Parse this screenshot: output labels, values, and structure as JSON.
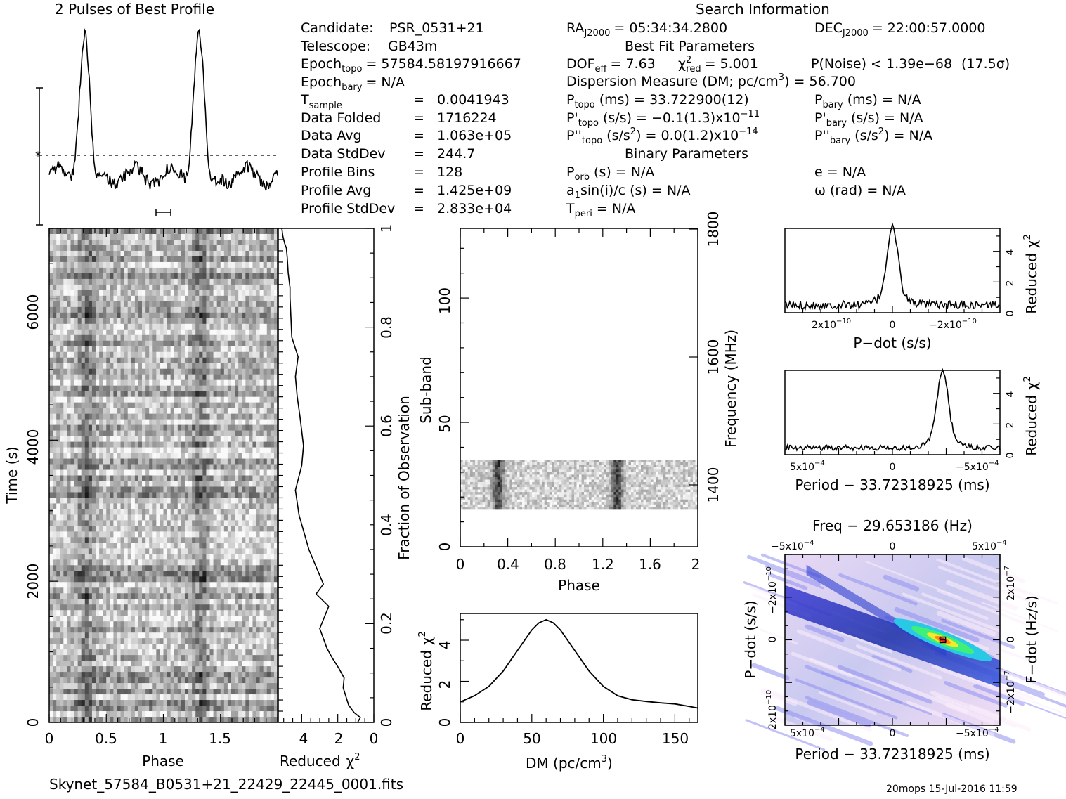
{
  "title_profile": "2 Pulses of Best Profile",
  "title_search": "Search Information",
  "title_best_fit": "Best Fit Parameters",
  "title_binary": "Binary Parameters",
  "filename": "Skynet_57584_B0531+21_22429_22445_0001.fits",
  "footer_stamp": "20mops 15-Jul-2016 11:59",
  "info": {
    "candidate_label": "Candidate:",
    "candidate_value": "PSR_0531+21",
    "telescope_label": "Telescope:",
    "telescope_value": "GB43m",
    "epoch_topo_label": "Epoch",
    "epoch_topo_sub": "topo",
    "epoch_topo_value": "= 57584.58197916667",
    "epoch_bary_label": "Epoch",
    "epoch_bary_sub": "bary",
    "epoch_bary_value": "= N/A",
    "tsample_label": "T",
    "tsample_sub": "sample",
    "tsample_eq": "=",
    "tsample_value": "0.0041943",
    "folded_label": "Data Folded",
    "folded_eq": "=",
    "folded_value": "1716224",
    "avg_label": "Data Avg",
    "avg_eq": "=",
    "avg_value": "1.063e+05",
    "std_label": "Data StdDev",
    "std_eq": "=",
    "std_value": "244.7",
    "bins_label": "Profile Bins",
    "bins_eq": "=",
    "bins_value": "128",
    "pavg_label": "Profile Avg",
    "pavg_eq": "=",
    "pavg_value": "1.425e+09",
    "pstd_label": "Profile StdDev",
    "pstd_eq": "=",
    "pstd_value": "2.833e+04"
  },
  "search": {
    "ra_label": "RA",
    "ra_sub": "J2000",
    "ra_value": "= 05:34:34.2800",
    "dec_label": "DEC",
    "dec_sub": "J2000",
    "dec_value": "= 22:00:57.0000",
    "dof_label": "DOF",
    "dof_sub": "eff",
    "dof_value": "= 7.63",
    "chi_label": "χ",
    "chi_sup": "2",
    "chi_sub": "red",
    "chi_value": "= 5.001",
    "pnoise": "P(Noise) < 1.39e−68",
    "sigma": "(17.5σ)",
    "dm_label": "Dispersion Measure (DM; pc/cm",
    "dm_sup": "3",
    "dm_value": ") = 56.700",
    "ptopo_label": "P",
    "ptopo_sub": "topo",
    "ptopo_value": "(ms) =  33.722900(12)",
    "pbary_label": "P",
    "pbary_sub": "bary",
    "pbary_value": "(ms) = N/A",
    "pdtopo_label": "P'",
    "pdtopo_sub": "topo",
    "pdtopo_value": "(s/s) = −0.1(1.3)x10",
    "pdtopo_exp": "−11",
    "pdbary_label": "P'",
    "pdbary_sub": "bary",
    "pdbary_value": "(s/s) = N/A",
    "pddtopo_label": "P''",
    "pddtopo_sub": "topo",
    "pddtopo_value": "(s/s",
    "pddtopo_sup": "2",
    "pddtopo_value2": ") = 0.0(1.2)x10",
    "pddtopo_exp": "−14",
    "pddbary_label": "P''",
    "pddbary_sub": "bary",
    "pddbary_value": "(s/s",
    "pddbary_sup": "2",
    "pddbary_value2": ") = N/A",
    "porb_label": "P",
    "porb_sub": "orb",
    "porb_value": "(s) = N/A",
    "e_value": "e = N/A",
    "a1_label": "a",
    "a1_sub": "1",
    "a1_value": "sin(i)/c (s) = N/A",
    "omega_value": "ω (rad) = N/A",
    "tperi_label": "T",
    "tperi_sub": "peri",
    "tperi_value": "= N/A"
  },
  "chart_data": [
    {
      "id": "profile",
      "type": "line",
      "title": "2 Pulses of Best Profile",
      "x_range": [
        0,
        2
      ],
      "peaks": [
        0.31,
        1.31
      ],
      "notes": "two sharp pulses at phase ~0.31 and ~1.31, noisy baseline between"
    },
    {
      "id": "time-phase",
      "type": "heatmap",
      "xlabel": "Phase",
      "ylabel": "Time (s)",
      "xticks": [
        "0",
        "0.5",
        "1",
        "1.5"
      ],
      "yticks": [
        "0",
        "2000",
        "4000",
        "6000"
      ],
      "x_range": [
        0,
        2
      ],
      "y_range": [
        0,
        7000
      ],
      "colormap": "grayscale"
    },
    {
      "id": "chi-vs-time",
      "type": "line",
      "xlabel": "Reduced",
      "xlabel_chi": "χ",
      "xlabel_sup": "2",
      "ylabel": "Fraction of Observation",
      "xticks": [
        "4",
        "2",
        "0"
      ],
      "yticks": [
        "0",
        "0.2",
        "0.4",
        "0.6",
        "0.8",
        "1"
      ],
      "x_range": [
        5.3,
        0
      ],
      "y_range": [
        0,
        1
      ],
      "x": [
        0.9,
        0.75,
        1.1,
        1.4,
        1.7,
        1.65,
        1.95,
        2.3,
        2.6,
        3.0,
        2.5,
        3.2,
        2.8,
        3.6,
        4.15,
        4.35,
        4.0,
        3.9,
        4.1,
        4.25,
        4.35,
        4.2,
        4.55,
        4.6,
        4.65,
        4.65,
        4.75,
        4.8,
        4.85,
        4.95,
        5.05,
        5.1
      ],
      "y": [
        0.0,
        0.01,
        0.02,
        0.035,
        0.07,
        0.09,
        0.11,
        0.13,
        0.15,
        0.19,
        0.235,
        0.26,
        0.28,
        0.35,
        0.42,
        0.47,
        0.52,
        0.56,
        0.62,
        0.66,
        0.7,
        0.74,
        0.78,
        0.82,
        0.86,
        0.88,
        0.91,
        0.94,
        0.96,
        0.97,
        0.985,
        1.0
      ]
    },
    {
      "id": "subband-phase",
      "type": "heatmap",
      "xlabel": "Phase",
      "ylabel": "Sub-band",
      "ylabel_right": "Frequency (MHz)",
      "xticks": [
        "0",
        "0.4",
        "0.8",
        "1.2",
        "1.6",
        "2"
      ],
      "yticks": [
        "0",
        "50",
        "100"
      ],
      "yticks_right": [
        "1400",
        "1600",
        "1800"
      ],
      "x_range": [
        0,
        2
      ],
      "y_range": [
        0,
        128
      ],
      "data_band": [
        15,
        35
      ],
      "colormap": "grayscale"
    },
    {
      "id": "dm-curve",
      "type": "line",
      "xlabel": "DM (pc/cm",
      "xlabel_sup": "3",
      "xlabel_end": ")",
      "ylabel": "Reduced",
      "ylabel_chi": "χ",
      "ylabel_sup": "2",
      "xticks": [
        "0",
        "50",
        "100",
        "150"
      ],
      "yticks": [
        "0",
        "2",
        "4"
      ],
      "x_range": [
        0,
        166
      ],
      "y_range": [
        0,
        5.3
      ],
      "x": [
        0,
        10,
        20,
        30,
        40,
        50,
        55,
        60,
        65,
        70,
        80,
        90,
        100,
        110,
        120,
        130,
        140,
        150,
        160,
        166
      ],
      "y": [
        1.0,
        1.3,
        1.75,
        2.5,
        3.5,
        4.5,
        4.85,
        5.0,
        4.85,
        4.5,
        3.5,
        2.5,
        1.75,
        1.3,
        1.1,
        1.02,
        0.95,
        0.9,
        0.78,
        0.7
      ]
    },
    {
      "id": "pdot-curve",
      "type": "line",
      "xlabel": "P−dot (s/s)",
      "ylabel": "Reduced",
      "ylabel_chi": "χ",
      "ylabel_sup": "2",
      "xticks": [
        "2x10",
        "0",
        "−2x10"
      ],
      "xticks_exp": "−10",
      "yticks": [
        "0",
        "2",
        "4"
      ],
      "x_range": [
        3.8e-10,
        -3.8e-10
      ],
      "y_range": [
        0,
        5.5
      ],
      "peak_x": 0,
      "peak_y": 5.0
    },
    {
      "id": "period-curve",
      "type": "line",
      "xlabel": "Period − 33.72318925 (ms)",
      "ylabel": "Reduced",
      "ylabel_chi": "χ",
      "ylabel_sup": "2",
      "xticks": [
        "5x10",
        "0",
        "−5x10"
      ],
      "xticks_exp": "−4",
      "yticks": [
        "0",
        "2",
        "4"
      ],
      "x_range": [
        0.00062,
        -0.00062
      ],
      "y_range": [
        0,
        5.5
      ],
      "peak_x": -0.00029,
      "peak_y": 4.95
    },
    {
      "id": "ppdot-plane",
      "type": "heatmap",
      "title": "Freq − 29.653186 (Hz)",
      "xlabel": "Period − 33.72318925 (ms)",
      "ylabel": "P−dot (s/s)",
      "ylabel_right": "F−dot (Hz/s)",
      "xticks_top": [
        "−5x10",
        "0",
        "5x10"
      ],
      "xticks_top_exp": "−4",
      "xticks": [
        "5x10",
        "0",
        "−5x10"
      ],
      "xticks_exp": "−4",
      "yticks": [
        "2x10",
        "0",
        "−2x10"
      ],
      "yticks_exp": "−10",
      "yticks_right": [
        "−2x10",
        "0",
        "2x10"
      ],
      "yticks_right_exp": "−7",
      "colormap": "rainbow-on-lavender",
      "best_fit_x": -0.00029,
      "best_fit_y": 0
    }
  ]
}
